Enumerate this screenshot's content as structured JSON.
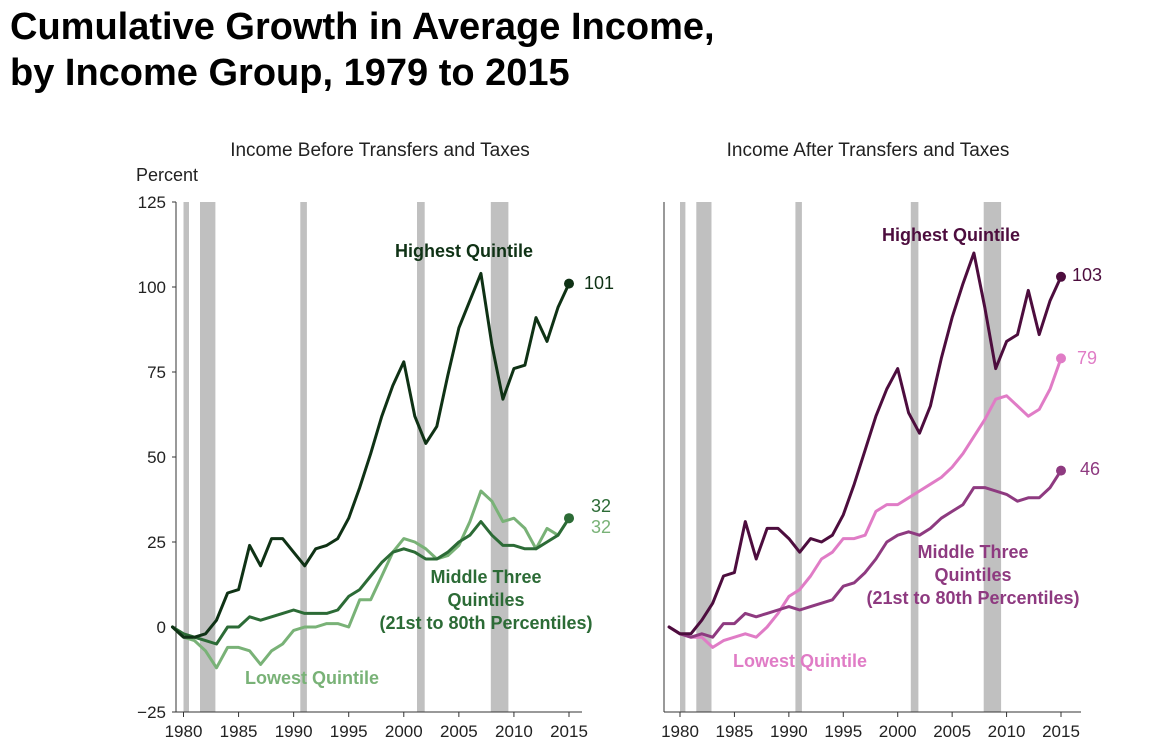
{
  "title": {
    "line1": "Cumulative Growth in Average Income,",
    "line2": "by Income Group, 1979 to 2015"
  },
  "colors": {
    "recession": "#c0c0c0",
    "before_highest": "#0f3215",
    "before_middle": "#2c6b36",
    "before_lowest": "#79b277",
    "after_highest": "#4d0d3e",
    "after_middle": "#8e3a80",
    "after_lowest": "#e07cc6"
  },
  "chart_data": [
    {
      "type": "line",
      "title": "Income Before Transfers and Taxes",
      "ylabel": "Percent",
      "xlabel": "",
      "xlim": [
        1979,
        2015
      ],
      "ylim": [
        -25,
        125
      ],
      "yticks": [
        -25,
        0,
        25,
        50,
        75,
        100,
        125
      ],
      "xticks": [
        1980,
        1985,
        1990,
        1995,
        2000,
        2005,
        2010,
        2015
      ],
      "recessions": [
        [
          1980,
          1980.5
        ],
        [
          1981.5,
          1982.9
        ],
        [
          1990.6,
          1991.2
        ],
        [
          2001.2,
          2001.9
        ],
        [
          2007.9,
          2009.5
        ]
      ],
      "x": [
        1979,
        1980,
        1981,
        1982,
        1983,
        1984,
        1985,
        1986,
        1987,
        1988,
        1989,
        1990,
        1991,
        1992,
        1993,
        1994,
        1995,
        1996,
        1997,
        1998,
        1999,
        2000,
        2001,
        2002,
        2003,
        2004,
        2005,
        2006,
        2007,
        2008,
        2009,
        2010,
        2011,
        2012,
        2013,
        2014,
        2015
      ],
      "series": [
        {
          "name": "Highest Quintile",
          "label_lines": [
            "Highest Quintile"
          ],
          "end_label": "101",
          "color_key": "before_highest",
          "values": [
            0,
            -3,
            -3,
            -2,
            2,
            10,
            11,
            24,
            18,
            26,
            26,
            22,
            18,
            23,
            24,
            26,
            32,
            41,
            51,
            62,
            71,
            78,
            62,
            54,
            59,
            74,
            88,
            96,
            104,
            83,
            67,
            76,
            77,
            91,
            84,
            94,
            101
          ]
        },
        {
          "name": "Middle Three Quintiles",
          "label_lines": [
            "Middle Three",
            "Quintiles",
            "(21st to 80th Percentiles)"
          ],
          "end_label": "32",
          "color_key": "before_middle",
          "values": [
            0,
            -2,
            -3,
            -4,
            -5,
            0,
            0,
            3,
            2,
            3,
            4,
            5,
            4,
            4,
            4,
            5,
            9,
            11,
            15,
            19,
            22,
            23,
            22,
            20,
            20,
            22,
            25,
            27,
            31,
            27,
            24,
            24,
            23,
            23,
            25,
            27,
            32
          ]
        },
        {
          "name": "Lowest Quintile",
          "label_lines": [
            "Lowest Quintile"
          ],
          "end_label": "32",
          "color_key": "before_lowest",
          "values": [
            0,
            -3,
            -4,
            -7,
            -12,
            -6,
            -6,
            -7,
            -11,
            -7,
            -5,
            -1,
            0,
            0,
            1,
            1,
            0,
            8,
            8,
            15,
            22,
            26,
            25,
            23,
            20,
            21,
            24,
            31,
            40,
            37,
            31,
            32,
            29,
            23,
            29,
            27,
            32
          ]
        }
      ]
    },
    {
      "type": "line",
      "title": "Income After Transfers and Taxes",
      "ylabel": "",
      "xlabel": "",
      "xlim": [
        1979,
        2015
      ],
      "ylim": [
        -25,
        125
      ],
      "xticks": [
        1980,
        1985,
        1990,
        1995,
        2000,
        2005,
        2010,
        2015
      ],
      "recessions": [
        [
          1980,
          1980.5
        ],
        [
          1981.5,
          1982.9
        ],
        [
          1990.6,
          1991.2
        ],
        [
          2001.2,
          2001.9
        ],
        [
          2007.9,
          2009.5
        ]
      ],
      "x": [
        1979,
        1980,
        1981,
        1982,
        1983,
        1984,
        1985,
        1986,
        1987,
        1988,
        1989,
        1990,
        1991,
        1992,
        1993,
        1994,
        1995,
        1996,
        1997,
        1998,
        1999,
        2000,
        2001,
        2002,
        2003,
        2004,
        2005,
        2006,
        2007,
        2008,
        2009,
        2010,
        2011,
        2012,
        2013,
        2014,
        2015
      ],
      "series": [
        {
          "name": "Highest Quintile",
          "label_lines": [
            "Highest Quintile"
          ],
          "end_label": "103",
          "color_key": "after_highest",
          "values": [
            0,
            -2,
            -2,
            2,
            7,
            15,
            16,
            31,
            20,
            29,
            29,
            26,
            22,
            26,
            25,
            27,
            33,
            42,
            52,
            62,
            70,
            76,
            63,
            57,
            65,
            79,
            91,
            101,
            110,
            94,
            76,
            84,
            86,
            99,
            86,
            96,
            103
          ]
        },
        {
          "name": "Middle Three Quintiles",
          "label_lines": [
            "Middle Three",
            "Quintiles",
            "(21st to 80th Percentiles)"
          ],
          "end_label": "46",
          "color_key": "after_middle",
          "values": [
            0,
            -2,
            -3,
            -2,
            -3,
            1,
            1,
            4,
            3,
            4,
            5,
            6,
            5,
            6,
            7,
            8,
            12,
            13,
            16,
            20,
            25,
            27,
            28,
            27,
            29,
            32,
            34,
            36,
            41,
            41,
            40,
            39,
            37,
            38,
            38,
            41,
            46
          ]
        },
        {
          "name": "Lowest Quintile",
          "label_lines": [
            "Lowest Quintile"
          ],
          "end_label": "79",
          "color_key": "after_lowest",
          "values": [
            0,
            -2,
            -3,
            -3,
            -6,
            -4,
            -3,
            -2,
            -3,
            0,
            4,
            9,
            11,
            15,
            20,
            22,
            26,
            26,
            27,
            34,
            36,
            36,
            38,
            40,
            42,
            44,
            47,
            51,
            56,
            61,
            67,
            68,
            65,
            62,
            64,
            70,
            79
          ]
        }
      ]
    }
  ]
}
